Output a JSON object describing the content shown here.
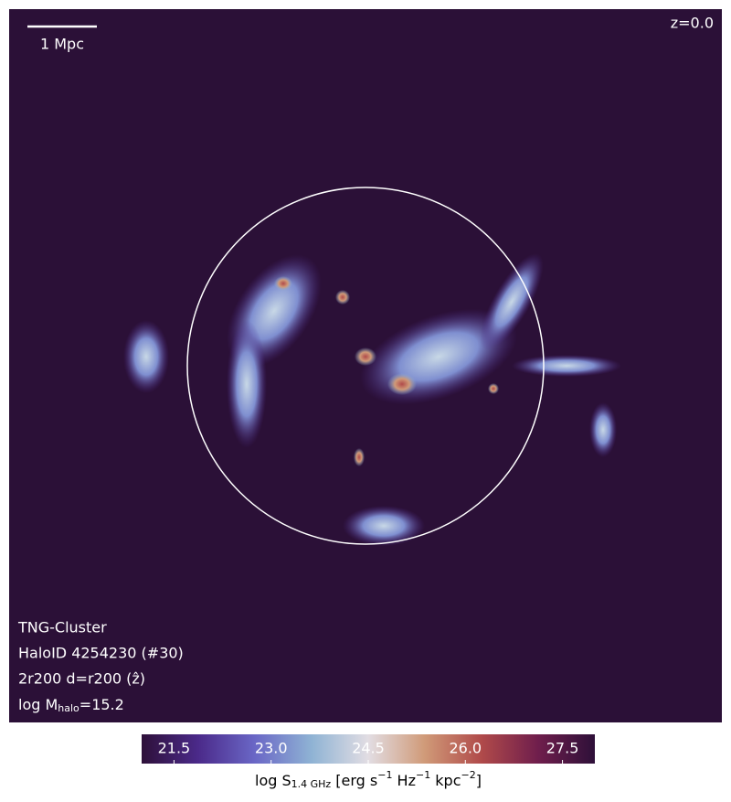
{
  "chart_data": {
    "type": "image",
    "annotations": {
      "redshift": "z=0.0",
      "scale_bar": "1 Mpc",
      "simulation": "TNG-Cluster",
      "halo_id": "HaloID 4254230 (#30)",
      "projection": "2r200 d=r200 (ẑ)",
      "halo_mass": [
        "log M",
        "halo",
        "=15.2"
      ]
    },
    "colorbar": {
      "label": [
        "log S",
        "1.4 GHz",
        " [erg s",
        "−1",
        " Hz",
        "−1",
        " kpc",
        "−2",
        "]"
      ],
      "clim": [
        21,
        28
      ],
      "ticks": [
        21.5,
        {
          "value": 23,
          "label": "23.0"
        },
        24.5,
        {
          "value": 26,
          "label": "26.0"
        },
        27.5
      ],
      "colormap": [
        "#2e1039",
        "#4b2a8a",
        "#6a67c6",
        "#8fb3d4",
        "#e2dde3",
        "#d09a78",
        "#b04a4a",
        "#6f1e4c",
        "#2e1039"
      ]
    }
  }
}
